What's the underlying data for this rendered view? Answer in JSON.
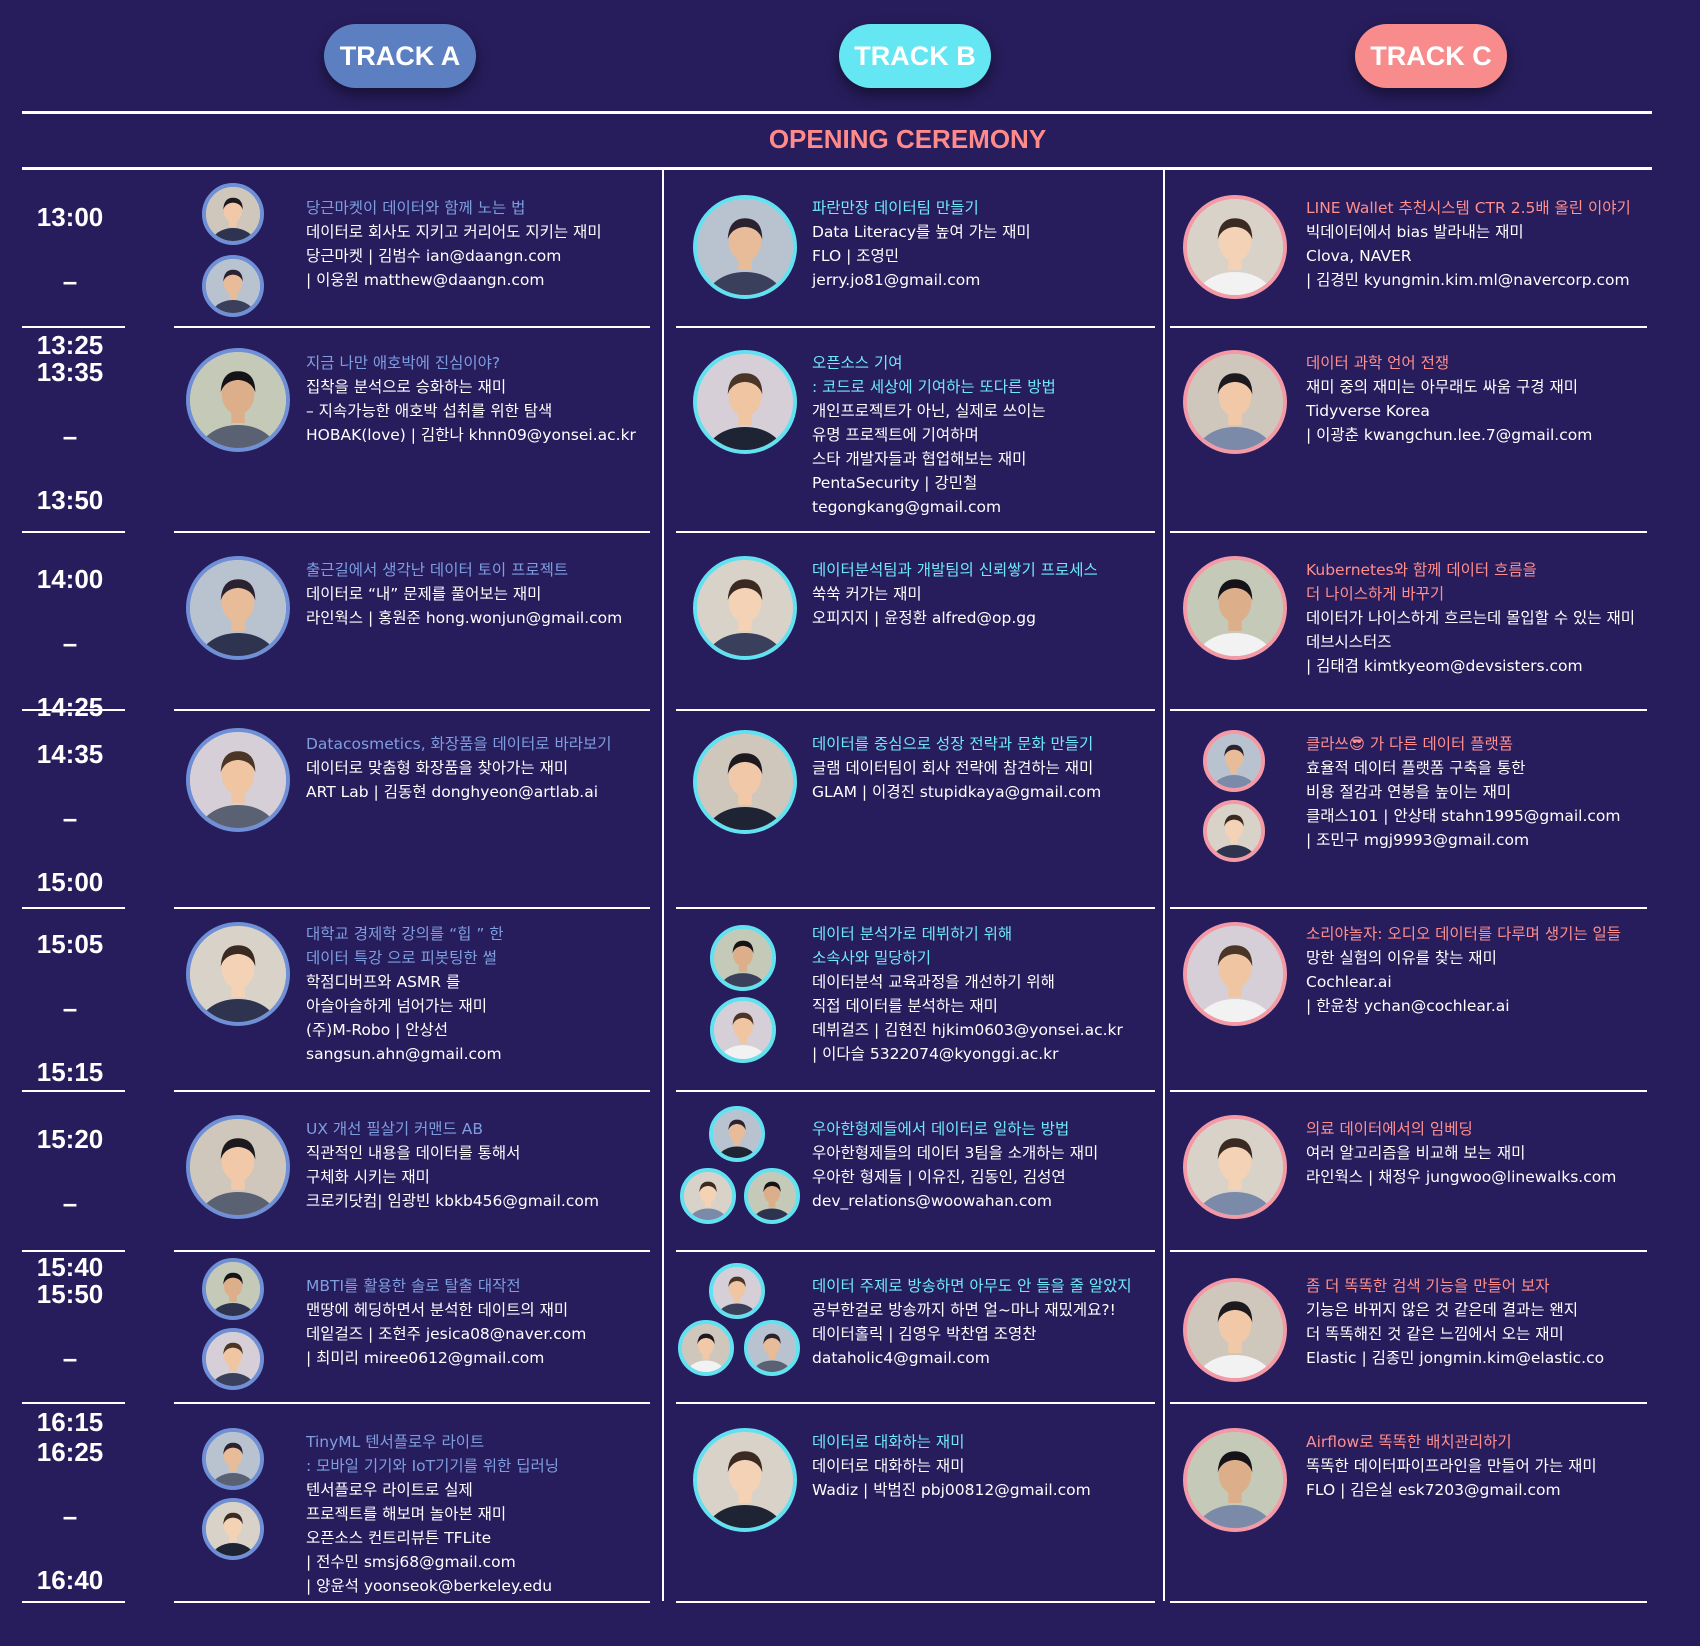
{
  "tracks": [
    "TRACK A",
    "TRACK B",
    "TRACK C"
  ],
  "opening": "OPENING CEREMONY",
  "colors": {
    "background": "#271d5c",
    "track_a": "#5b7fc1",
    "track_b": "#65e6f3",
    "track_c": "#f88c8c",
    "opening": "#ff8a8a"
  },
  "slots": [
    {
      "start": "13:00",
      "end": "13:25",
      "a": {
        "title": [
          "당근마켓이 데이터와 함께 노는 법"
        ],
        "body": [
          "데이터로 회사도 지키고 커리어도 지키는 재미",
          "당근마켓 | 김범수 ian@daangn.com",
          "             | 이웅원 matthew@daangn.com"
        ]
      },
      "b": {
        "title": [
          "파란만장 데이터팀 만들기"
        ],
        "body": [
          "Data Literacy를 높여 가는 재미",
          "FLO | 조영민",
          "jerry.jo81@gmail.com"
        ]
      },
      "c": {
        "title": [
          "LINE Wallet 추천시스템 CTR 2.5배 올린 이야기"
        ],
        "body": [
          "빅데이터에서 bias 발라내는 재미",
          "Clova, NAVER",
          "| 김경민  kyungmin.kim.ml@navercorp.com"
        ]
      }
    },
    {
      "start": "13:35",
      "end": "13:50",
      "a": {
        "title": [
          "지금 나만 애호박에 진심이야?"
        ],
        "body": [
          "집착을 분석으로 승화하는 재미",
          "– 지속가능한 애호박 섭취를 위한 탐색",
          "HOBAK(love) | 김한나 khnn09@yonsei.ac.kr"
        ]
      },
      "b": {
        "title": [
          "오픈소스 기여",
          ": 코드로 세상에 기여하는 또다른 방법"
        ],
        "body": [
          "개인프로젝트가 아닌, 실제로 쓰이는",
          "유명 프로젝트에 기여하며",
          "스타 개발자들과 협업해보는 재미",
          "PentaSecurity | 강민철",
          "tegongkang@gmail.com"
        ]
      },
      "c": {
        "title": [
          "데이터 과학 언어 전쟁"
        ],
        "body": [
          "재미 중의 재미는 아무래도 싸움 구경 재미",
          "Tidyverse Korea",
          "| 이광춘 kwangchun.lee.7@gmail.com"
        ]
      }
    },
    {
      "start": "14:00",
      "end": "14:25",
      "a": {
        "title": [
          "출근길에서 생각난 데이터 토이 프로젝트"
        ],
        "body": [
          "데이터로 “내” 문제를 풀어보는 재미",
          "라인웍스 | 홍원준 hong.wonjun@gmail.com"
        ]
      },
      "b": {
        "title": [
          "데이터분석팀과 개발팀의 신뢰쌓기 프로세스"
        ],
        "body": [
          "쑥쑥 커가는 재미",
          "오피지지 | 윤정환 alfred@op.gg"
        ]
      },
      "c": {
        "title": [
          "Kubernetes와 함께 데이터 흐름을",
          "더 나이스하게 바꾸기"
        ],
        "body": [
          "데이터가 나이스하게 흐르는데 몰입할 수 있는 재미",
          "데브시스터즈",
          "| 김태겸 kimtkyeom@devsisters.com"
        ]
      }
    },
    {
      "start": "14:35",
      "end": "15:00",
      "a": {
        "title": [
          "Datacosmetics, 화장품을 데이터로 바라보기"
        ],
        "body": [
          "데이터로 맞춤형 화장품을 찾아가는 재미",
          "ART Lab | 김동현 donghyeon@artlab.ai"
        ]
      },
      "b": {
        "title": [
          "데이터를 중심으로 성장 전략과 문화 만들기"
        ],
        "body": [
          "글램 데이터팀이 회사 전략에 참견하는 재미",
          "GLAM | 이경진 stupidkaya@gmail.com"
        ]
      },
      "c": {
        "title": [
          "클라쓰😎 가 다른 데이터 플랫폼"
        ],
        "body": [
          "효율적 데이터 플랫폼 구축을 통한",
          "비용 절감과 연봉을 높이는 재미",
          "클래스101 | 안상태 stahn1995@gmail.com",
          "                  | 조민구 mgj9993@gmail.com"
        ]
      }
    },
    {
      "start": "15:05",
      "end": "15:15",
      "a": {
        "title": [
          "대학교 경제학 강의를 “힙 ” 한",
          "데이터 특강 으로 피봇팅한 썰"
        ],
        "body": [
          "학점디버프와 ASMR 를",
          "아슬아슬하게 넘어가는 재미",
          "(주)M-Robo | 안상선",
          "sangsun.ahn@gmail.com"
        ]
      },
      "b": {
        "title": [
          "데이터 분석가로 데뷔하기 위해",
          "소속사와 밀당하기"
        ],
        "body": [
          "데이터분석 교육과정을 개선하기 위해",
          "직접 데이터를 분석하는 재미",
          "데뷔걸즈 | 김현진 hjkim0603@yonsei.ac.kr",
          "                  | 이다슬 5322074@kyonggi.ac.kr"
        ]
      },
      "c": {
        "title": [
          "소리야놀자: 오디오 데이터를 다루며 생기는 일들"
        ],
        "body": [
          "망한 실험의 이유를 찾는 재미",
          "Cochlear.ai",
          "| 한윤창 ychan@cochlear.ai"
        ]
      }
    },
    {
      "start": "15:20",
      "end": "15:40",
      "a": {
        "title": [
          "UX 개선 필살기 커맨드 AB"
        ],
        "body": [
          "직관적인 내용을 데이터를 통해서",
          "구체화 시키는 재미",
          "크로키닷컴| 임광빈 kbkb456@gmail.com"
        ]
      },
      "b": {
        "title": [
          "우아한형제들에서 데이터로 일하는 방법"
        ],
        "body": [
          "우아한형제들의 데이터 3팀을 소개하는 재미",
          "우아한 형제들 | 이유진, 김동인, 김성연",
          "dev_relations@woowahan.com"
        ]
      },
      "c": {
        "title": [
          "의료 데이터에서의 임베딩"
        ],
        "body": [
          "여러 알고리즘을 비교해 보는 재미",
          "라인웍스 | 채정우  jungwoo@linewalks.com"
        ]
      }
    },
    {
      "start": "15:50",
      "end": "16:15",
      "a": {
        "title": [
          "MBTI를 활용한 솔로 탈출 대작전"
        ],
        "body": [
          "맨땅에 헤딩하면서 분석한 데이트의 재미",
          "데잍걸즈 | 조현주 jesica08@naver.com",
          "             | 최미리 miree0612@gmail.com"
        ]
      },
      "b": {
        "title": [
          "데이터 주제로 방송하면 아무도 안 들을 줄 알았지"
        ],
        "body": [
          "공부한걸로 방송까지 하면 얼~마나 재밌게요?!",
          "데이터홀릭 | 김영우 박찬엽 조영찬",
          "dataholic4@gmail.com"
        ]
      },
      "c": {
        "title": [
          "좀 더 똑똑한 검색 기능을 만들어 보자"
        ],
        "body": [
          "기능은 바뀌지 않은 것 같은데 결과는 왠지",
          "더 똑똑해진 것 같은 느낌에서 오는 재미",
          "Elastic | 김종민 jongmin.kim@elastic.co"
        ]
      }
    },
    {
      "start": "16:25",
      "end": "16:40",
      "a": {
        "title": [
          "TinyML 텐서플로우 라이트",
          ": 모바일 기기와 IoT기기를 위한 딥러닝"
        ],
        "body": [
          "텐서플로우 라이트로 실제",
          " 프로젝트를 해보며 놀아본 재미",
          "오픈소스 컨트리뷰튼 TFLite",
          "| 전수민 smsj68@gmail.com",
          "| 양윤석 yoonseok@berkeley.edu"
        ]
      },
      "b": {
        "title": [
          "데이터로 대화하는 재미"
        ],
        "body": [
          "데이터로 대화하는 재미",
          "Wadiz | 박범진  pbj00812@gmail.com"
        ]
      },
      "c": {
        "title": [
          "Airflow로 똑똑한 배치관리하기"
        ],
        "body": [
          "똑똑한 데이터파이프라인을 만들어 가는 재미",
          "FLO | 김은실 esk7203@gmail.com"
        ]
      }
    }
  ]
}
